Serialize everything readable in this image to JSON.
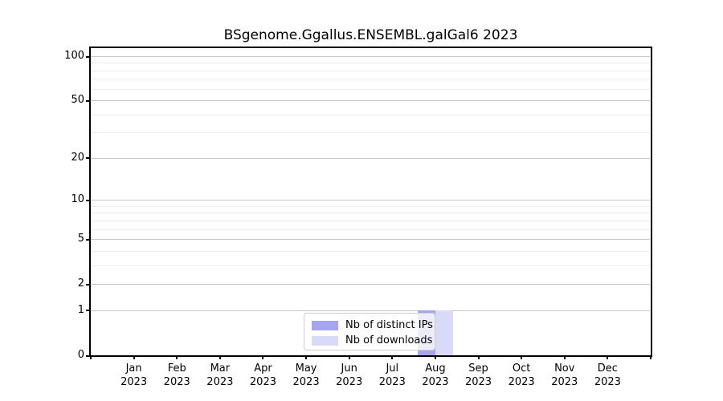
{
  "title": "BSgenome.Ggallus.ENSEMBL.galGal6 2023",
  "chart_data": {
    "type": "bar",
    "title": "BSgenome.Ggallus.ENSEMBL.galGal6 2023",
    "categories": [
      "Jan",
      "Feb",
      "Mar",
      "Apr",
      "May",
      "Jun",
      "Jul",
      "Aug",
      "Sep",
      "Oct",
      "Nov",
      "Dec"
    ],
    "year_label": "2023",
    "series": [
      {
        "name": "Nb of distinct IPs",
        "color": "#a6a6ef",
        "values": [
          0,
          0,
          0,
          0,
          0,
          0,
          0,
          1,
          0,
          0,
          0,
          0
        ]
      },
      {
        "name": "Nb of downloads",
        "color": "#d9d9f8",
        "values": [
          0,
          0,
          0,
          0,
          0,
          0,
          0,
          1,
          0,
          0,
          0,
          0
        ]
      }
    ],
    "xlabel": "",
    "ylabel": "",
    "y_scale": "log1p",
    "y_ticks": [
      0,
      1,
      2,
      5,
      10,
      20,
      50,
      100
    ],
    "y_minor_gridlines": [
      3,
      4,
      6,
      7,
      8,
      9,
      30,
      40,
      60,
      70,
      80,
      90
    ],
    "ylim": [
      0,
      114
    ],
    "grid": "horizontal-only",
    "legend_position": "lower center"
  },
  "colors": {
    "axis": "#000000",
    "major_grid": "#c6c6c6",
    "minor_grid": "#ececec",
    "legend_border": "#cccccc",
    "background": "#ffffff"
  }
}
